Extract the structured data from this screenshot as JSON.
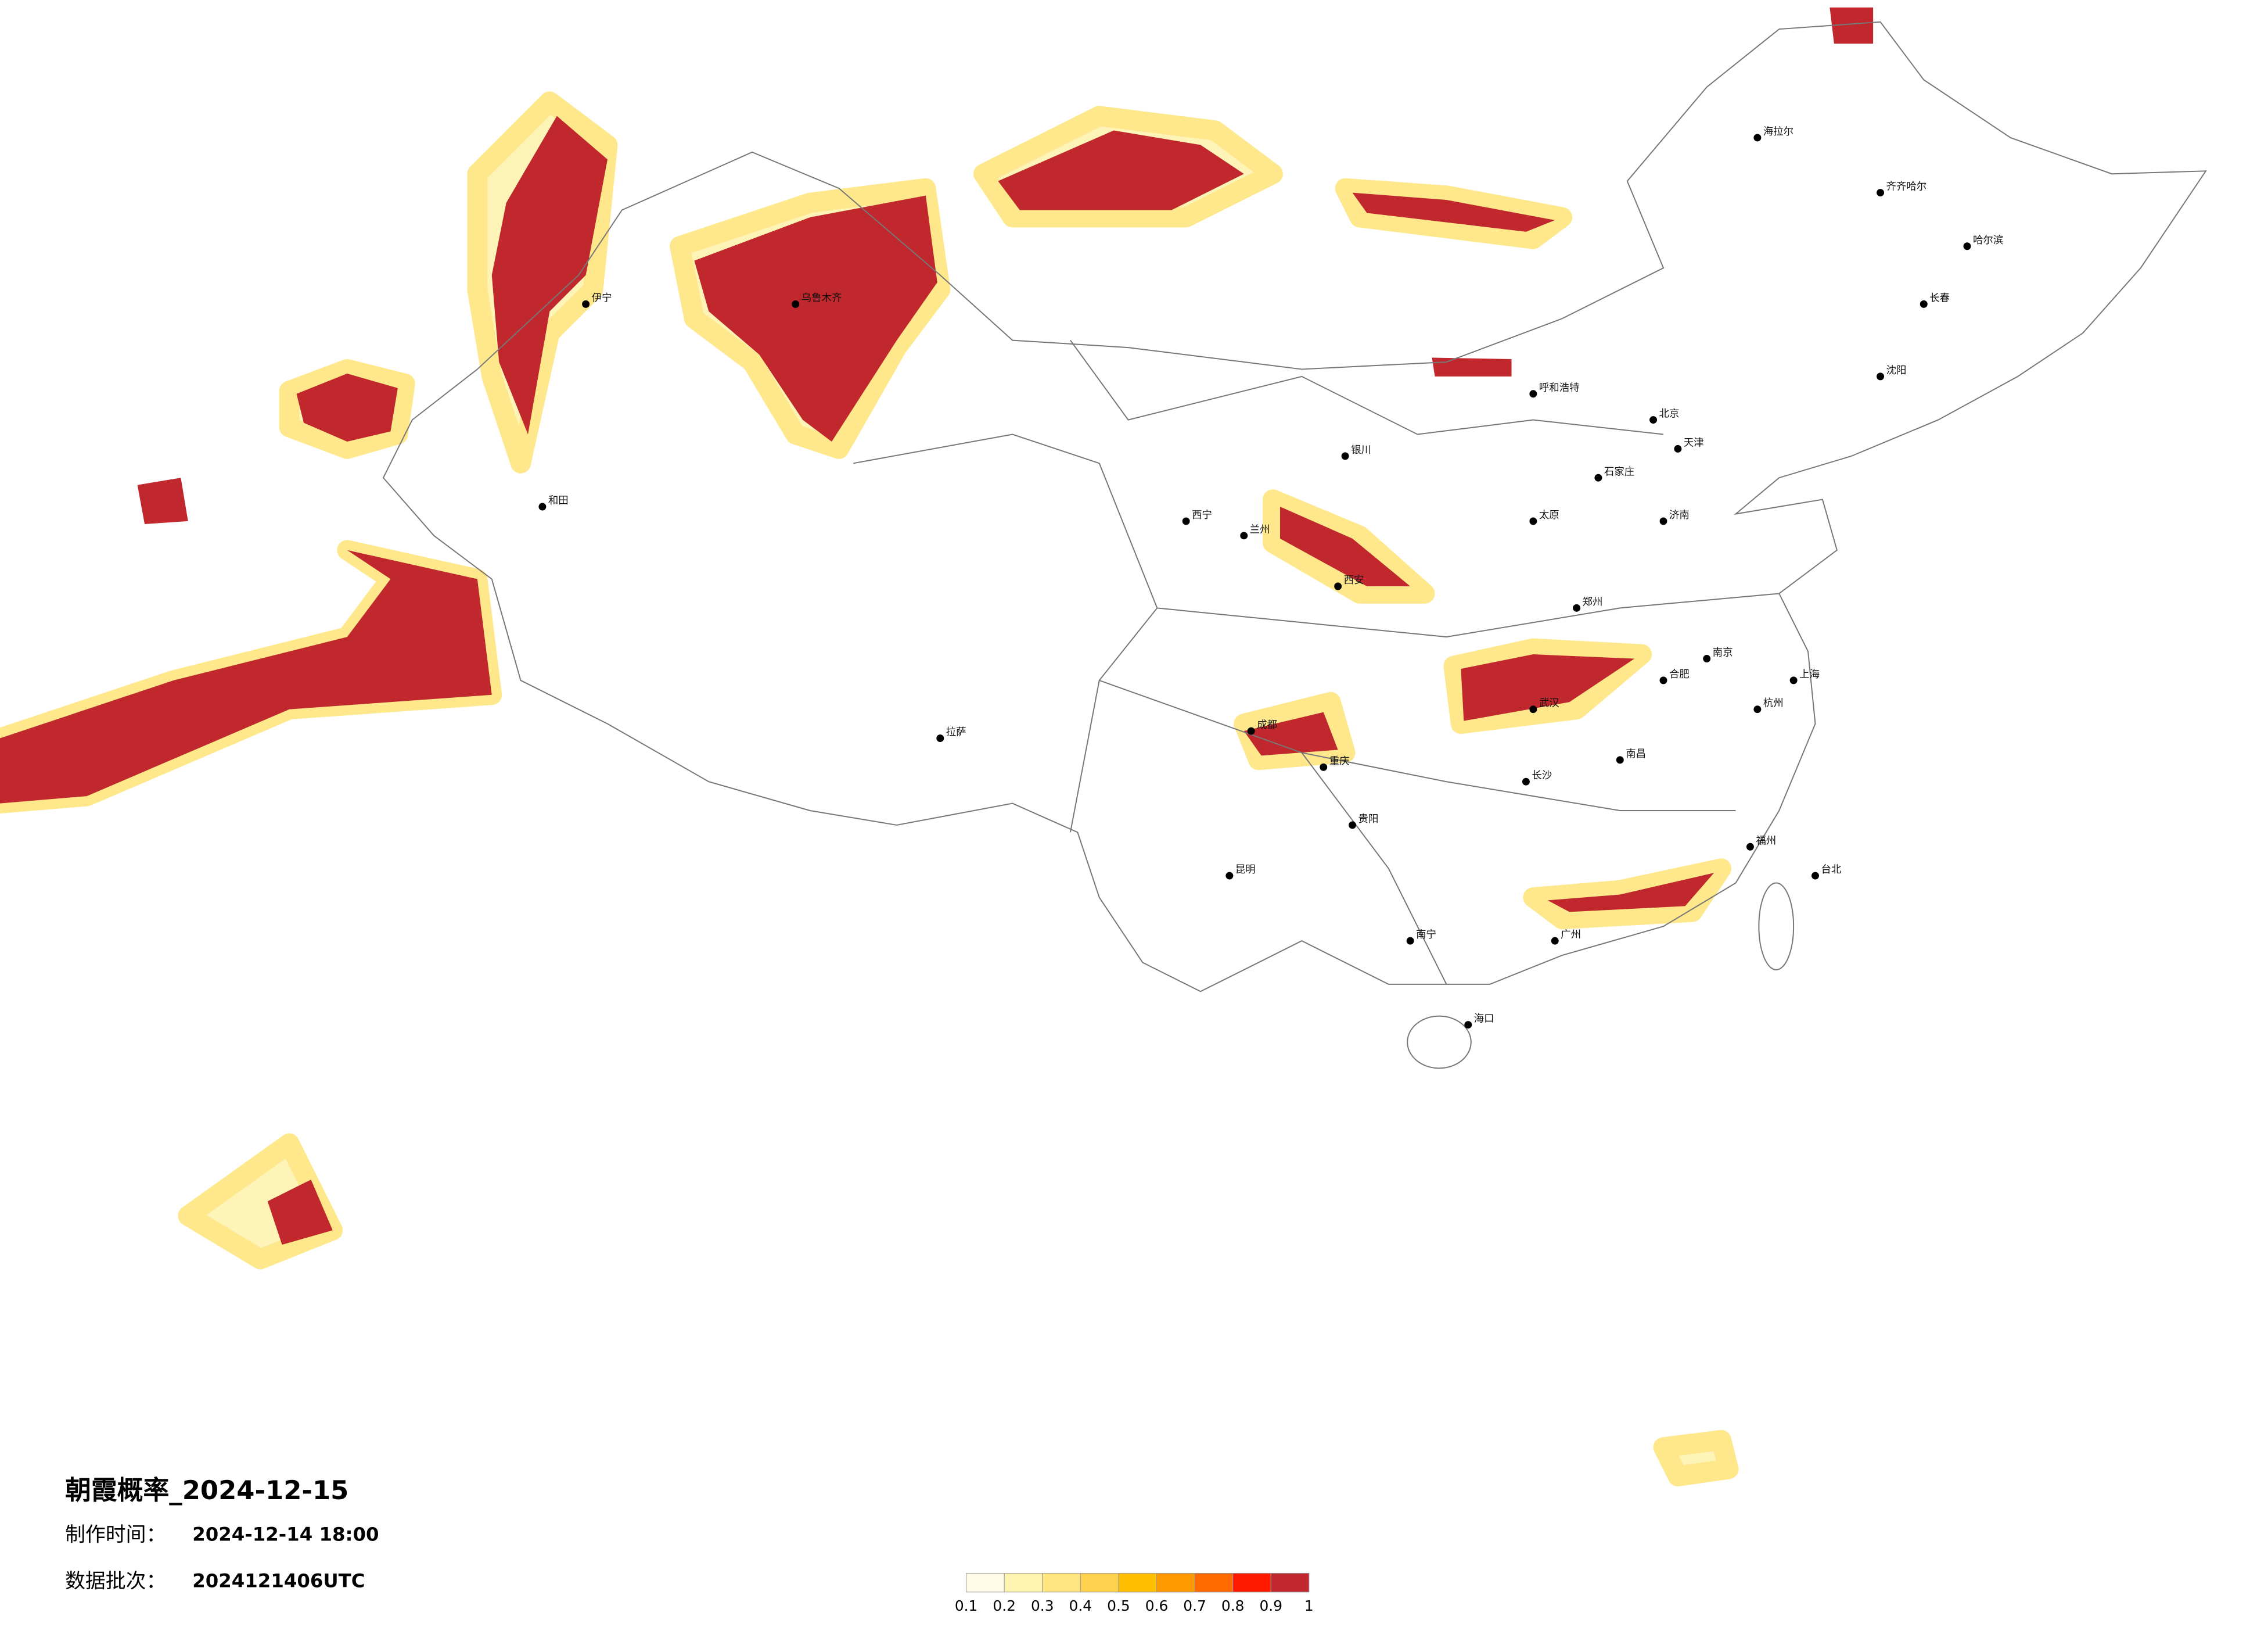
{
  "title": "朝霞概率_2024-12-15",
  "production_time_label": "制作时间：",
  "production_time": "2024-12-14 18:00",
  "batch_label": "数据批次：",
  "batch": "2024121406UTC",
  "legend": {
    "ticks": [
      0.1,
      0.2,
      0.3,
      0.4,
      0.5,
      0.6,
      0.7,
      0.8,
      0.9,
      1
    ],
    "colors": [
      "#fffbe6",
      "#fff3b0",
      "#ffe680",
      "#ffd24d",
      "#ffbf00",
      "#ff9900",
      "#ff6a00",
      "#ff1a00",
      "#c0282d"
    ]
  },
  "cities": [
    "北京",
    "天津",
    "石家庄",
    "太原",
    "呼和浩特",
    "郑州",
    "西安",
    "武汉",
    "长沙",
    "南昌",
    "合肥",
    "南京",
    "上海",
    "杭州",
    "福州",
    "广州",
    "南宁",
    "海口",
    "昆明",
    "贵阳",
    "成都",
    "重庆",
    "兰州",
    "西宁",
    "银川",
    "拉萨",
    "乌鲁木齐",
    "哈尔滨",
    "长春",
    "沈阳",
    "济南",
    "台北",
    "和田",
    "伊宁",
    "齐齐哈尔",
    "海拉尔"
  ]
}
